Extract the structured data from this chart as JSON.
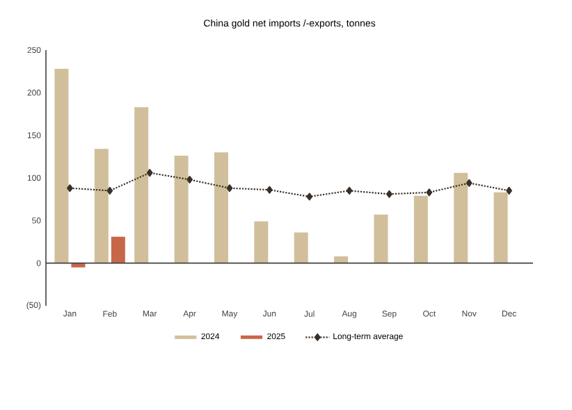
{
  "chart_data": {
    "type": "bar",
    "title": "China gold net imports /-exports, tonnes",
    "categories": [
      "Jan",
      "Feb",
      "Mar",
      "Apr",
      "May",
      "Jun",
      "Jul",
      "Aug",
      "Sep",
      "Oct",
      "Nov",
      "Dec"
    ],
    "series": [
      {
        "name": "2024",
        "color": "#d1bf9c",
        "values": [
          228,
          134,
          183,
          126,
          130,
          49,
          36,
          8,
          57,
          79,
          106,
          83
        ]
      },
      {
        "name": "2025",
        "color": "#c8664a",
        "values": [
          -5,
          31,
          null,
          null,
          null,
          null,
          null,
          null,
          null,
          null,
          null,
          null
        ]
      },
      {
        "name": "Long-term average",
        "type": "line",
        "color": "#3a3028",
        "marker": "diamond",
        "line_style": "dotted",
        "values": [
          88,
          85,
          106,
          98,
          88,
          86,
          78,
          85,
          81,
          83,
          94,
          85
        ]
      }
    ],
    "ylim": [
      -50,
      250
    ],
    "yticks": [
      {
        "value": -50,
        "label": "(50)"
      },
      0,
      50,
      100,
      150,
      200,
      250
    ],
    "legend": "bottom"
  }
}
